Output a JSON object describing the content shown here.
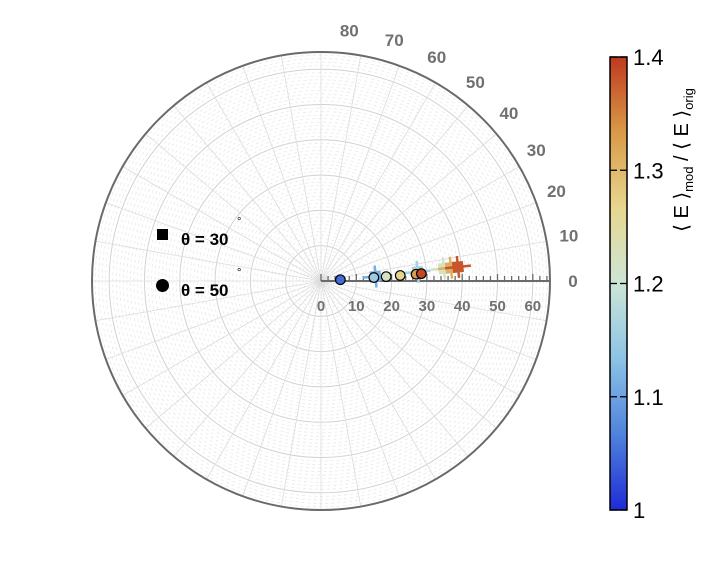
{
  "chart_data": {
    "type": "polar-scatter",
    "angle_range_deg": [
      0,
      90
    ],
    "angle_ticks": [
      "0",
      "10",
      "20",
      "30",
      "40",
      "50",
      "60",
      "70",
      "80"
    ],
    "radial_ticks": [
      "0",
      "10",
      "20",
      "30",
      "40",
      "50",
      "60"
    ],
    "radial_range": [
      0,
      65
    ],
    "grid": true,
    "legend": {
      "position": "left",
      "entries": [
        {
          "marker": "square",
          "label": "θ = 30",
          "unit": "°"
        },
        {
          "marker": "circle",
          "label": "θ = 50",
          "unit": "°"
        }
      ]
    },
    "series": [
      {
        "marker": "square",
        "points": [
          {
            "angle": 4.5,
            "r": 15.5,
            "color_value": 1.11
          },
          {
            "angle": 5.2,
            "r": 27.5,
            "color_value": 1.16
          },
          {
            "angle": 5.6,
            "r": 35.0,
            "color_value": 1.22
          },
          {
            "angle": 5.6,
            "r": 37.0,
            "color_value": 1.31
          },
          {
            "angle": 5.6,
            "r": 39.0,
            "color_value": 1.38
          }
        ]
      },
      {
        "marker": "circle",
        "points": [
          {
            "angle": 3.6,
            "r": 5.5,
            "color_value": 1.05
          },
          {
            "angle": 3.6,
            "r": 15.0,
            "color_value": 1.15
          },
          {
            "angle": 3.7,
            "r": 18.5,
            "color_value": 1.22
          },
          {
            "angle": 3.8,
            "r": 22.5,
            "color_value": 1.27
          },
          {
            "angle": 3.9,
            "r": 27.0,
            "color_value": 1.33
          },
          {
            "angle": 4.0,
            "r": 28.5,
            "color_value": 1.39
          }
        ]
      }
    ],
    "colorbar": {
      "min": 1,
      "max": 1.4,
      "ticks": [
        "1",
        "1.1",
        "1.2",
        "1.3",
        "1.4"
      ],
      "label_main": "⟨ E ⟩",
      "label_sub1": "mod",
      "label_sep": " / ",
      "label_sub2": "orig",
      "colors": [
        "#1f2bd6",
        "#4f82dc",
        "#8cc3e6",
        "#cce6d6",
        "#e7d790",
        "#d99a48",
        "#c0391f"
      ]
    }
  }
}
